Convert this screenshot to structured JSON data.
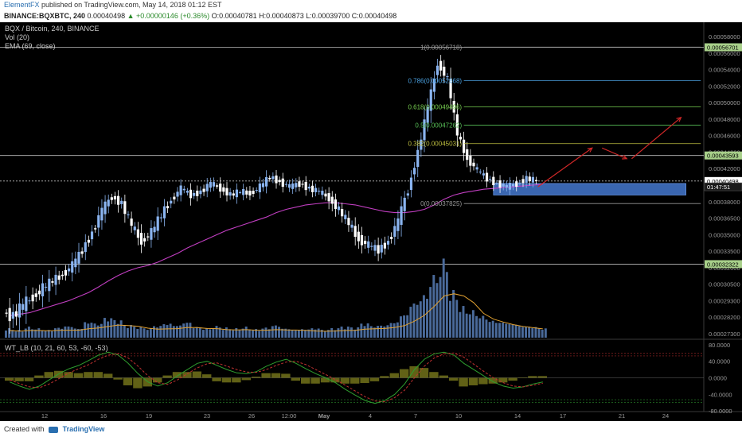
{
  "publish_bar": {
    "author": "ElementFX",
    "text": " published on TradingView.com, May 14, 2018 01:12 EST"
  },
  "symbol_bar": {
    "symbol": "BINANCE:BQXBTC, 240",
    "last": "0.00040498",
    "change": "▲ +0.00000146 (+0.36%)",
    "ohlc": "O:0.00040781 H:0.00040873 L:0.00039700 C:0.00040498"
  },
  "legend": {
    "title": "BQX / Bitcoin, 240, BINANCE",
    "vol": "Vol (20)",
    "ema": "EMA (69, close)",
    "osc": "WT_LB (10, 21, 60, 53, -60, -53)"
  },
  "colors": {
    "background": "#000000",
    "candle_up": "#8ab4f0",
    "candle_down": "#ffffff",
    "ema": "#c13ec1",
    "volume": "#4a6a9a",
    "volume_ma": "#e0a030",
    "demand_zone": "#3a66b0",
    "arrow": "#d02828",
    "wt1": "#2e9e2e",
    "wt2": "#c03030",
    "wt_fill": "#8a8a20"
  },
  "chart_data": {
    "type": "candlestick",
    "title": "BQX / Bitcoin, 240, BINANCE",
    "price_axis_labels": [
      "0.00058000",
      "0.00056000",
      "0.00054000",
      "0.00052000",
      "0.00050000",
      "0.00048000",
      "0.00046000",
      "0.00044000",
      "0.00042000",
      "0.00040000",
      "0.00038000",
      "0.00036500",
      "0.00035000",
      "0.00033500",
      "0.00032000",
      "0.00030500",
      "0.00029300",
      "0.00028200",
      "0.00027300"
    ],
    "price_axis_values": [
      0.00058,
      0.00056,
      0.00054,
      0.00052,
      0.0005,
      0.00048,
      0.00046,
      0.00044,
      0.00042,
      0.0004,
      0.00038,
      0.000365,
      0.00035,
      0.000335,
      0.00032,
      0.000305,
      0.000293,
      0.000282,
      0.000273
    ],
    "time_axis_labels": [
      "12",
      "16",
      "19",
      "23",
      "26",
      "12:00",
      "May",
      "4",
      "7",
      "10",
      "14",
      "17",
      "21",
      "24"
    ],
    "osc_axis_labels": [
      "80.0000",
      "40.0000",
      "0.0000",
      "-40.0000",
      "-80.0000"
    ],
    "osc_axis_values": [
      80,
      40,
      0,
      -40,
      -80
    ],
    "price_tags": [
      {
        "label": "0.00056701",
        "value": 0.00056701
      },
      {
        "label": "0.00043593",
        "value": 0.00043593
      },
      {
        "label": "0.00040498",
        "value": 0.00040498
      },
      {
        "label": "01:47:51",
        "value": 0.000398
      },
      {
        "label": "0.00032322",
        "value": 0.00032322
      }
    ],
    "fibonacci": [
      {
        "ratio": "1",
        "label": "1(0.00056718)",
        "price": 0.00056718
      },
      {
        "ratio": "0.786",
        "label": "0.786(0.00052668)",
        "price": 0.00052668
      },
      {
        "ratio": "0.618",
        "label": "0.618(0.00049496)",
        "price": 0.00049496
      },
      {
        "ratio": "0.5",
        "label": "0.5(0.00047262)",
        "price": 0.00047262
      },
      {
        "ratio": "0.382",
        "label": "0.382(0.00045031)",
        "price": 0.00045031
      },
      {
        "ratio": "0",
        "label": "0(0.00037825)",
        "price": 0.00037825
      }
    ],
    "horizontal_levels": [
      0.00056701,
      0.00043593,
      0.00040498,
      0.00032322
    ],
    "demand_zone": {
      "top": 0.000402,
      "bottom": 0.000388
    },
    "price_path": [
      0.000285,
      0.000283,
      0.00029,
      0.000296,
      0.000302,
      0.000308,
      0.000314,
      0.000322,
      0.000336,
      0.000352,
      0.000372,
      0.000386,
      0.000378,
      0.000358,
      0.000344,
      0.000352,
      0.000368,
      0.000382,
      0.000396,
      0.000388,
      0.000392,
      0.000402,
      0.000396,
      0.000388,
      0.000392,
      0.00039,
      0.000398,
      0.00041,
      0.000404,
      0.000398,
      0.000402,
      0.000396,
      0.000392,
      0.000384,
      0.000372,
      0.00036,
      0.000346,
      0.00034,
      0.000336,
      0.000344,
      0.000362,
      0.000394,
      0.00044,
      0.000494,
      0.000548,
      0.000528,
      0.000462,
      0.000432,
      0.000418,
      0.000408,
      0.000402,
      0.000398,
      0.000402,
      0.000408,
      0.000405
    ],
    "ema_path": [
      0.000283,
      0.000284,
      0.000285,
      0.000287,
      0.000289,
      0.000291,
      0.000293,
      0.000296,
      0.000299,
      0.000303,
      0.000308,
      0.000313,
      0.000317,
      0.00032,
      0.000322,
      0.000325,
      0.000329,
      0.000333,
      0.000338,
      0.000342,
      0.000346,
      0.00035,
      0.000354,
      0.000357,
      0.00036,
      0.000363,
      0.000366,
      0.00037,
      0.000373,
      0.000375,
      0.000377,
      0.000378,
      0.000379,
      0.000379,
      0.000378,
      0.000377,
      0.000375,
      0.000373,
      0.000371,
      0.00037,
      0.00037,
      0.000371,
      0.000373,
      0.000377,
      0.000383,
      0.000388,
      0.000391,
      0.000393,
      0.000395,
      0.000396,
      0.000397,
      0.000398,
      0.000399,
      0.0004,
      0.000401
    ],
    "volume_path": [
      0.12,
      0.1,
      0.14,
      0.12,
      0.1,
      0.13,
      0.15,
      0.12,
      0.2,
      0.18,
      0.25,
      0.22,
      0.16,
      0.14,
      0.12,
      0.15,
      0.18,
      0.16,
      0.2,
      0.14,
      0.12,
      0.15,
      0.13,
      0.12,
      0.14,
      0.11,
      0.13,
      0.16,
      0.12,
      0.1,
      0.11,
      0.12,
      0.1,
      0.12,
      0.14,
      0.13,
      0.18,
      0.15,
      0.16,
      0.2,
      0.3,
      0.45,
      0.55,
      0.8,
      1.0,
      0.6,
      0.4,
      0.35,
      0.28,
      0.22,
      0.2,
      0.18,
      0.15,
      0.14,
      0.12
    ],
    "wt1_path": [
      -10,
      -20,
      -28,
      -20,
      -5,
      10,
      22,
      30,
      42,
      55,
      62,
      55,
      35,
      10,
      -10,
      -20,
      -12,
      5,
      20,
      35,
      40,
      30,
      20,
      12,
      10,
      15,
      28,
      38,
      45,
      35,
      22,
      10,
      0,
      -12,
      -28,
      -42,
      -55,
      -62,
      -55,
      -40,
      -15,
      20,
      45,
      58,
      62,
      55,
      35,
      20,
      5,
      -10,
      -20,
      -25,
      -22,
      -15,
      -10
    ],
    "wt2_path": [
      -5,
      -14,
      -22,
      -24,
      -15,
      -2,
      12,
      22,
      32,
      45,
      55,
      58,
      48,
      28,
      5,
      -12,
      -16,
      -5,
      10,
      24,
      34,
      36,
      28,
      20,
      14,
      13,
      20,
      30,
      38,
      40,
      32,
      20,
      8,
      -4,
      -18,
      -32,
      -46,
      -56,
      -58,
      -48,
      -30,
      0,
      28,
      48,
      58,
      60,
      50,
      33,
      16,
      0,
      -12,
      -20,
      -22,
      -18,
      -13
    ],
    "projection_arrows": [
      {
        "from_bar": 54,
        "from_price": 0.000398,
        "to_bar": 59.5,
        "to_price": 0.000445
      },
      {
        "from_bar": 60.5,
        "from_price": 0.000445,
        "to_bar": 63,
        "to_price": 0.000432
      },
      {
        "from_bar": 63.5,
        "from_price": 0.000432,
        "to_bar": 68.5,
        "to_price": 0.000482
      }
    ]
  },
  "footer": {
    "created": "Created with",
    "brand": "TradingView"
  }
}
